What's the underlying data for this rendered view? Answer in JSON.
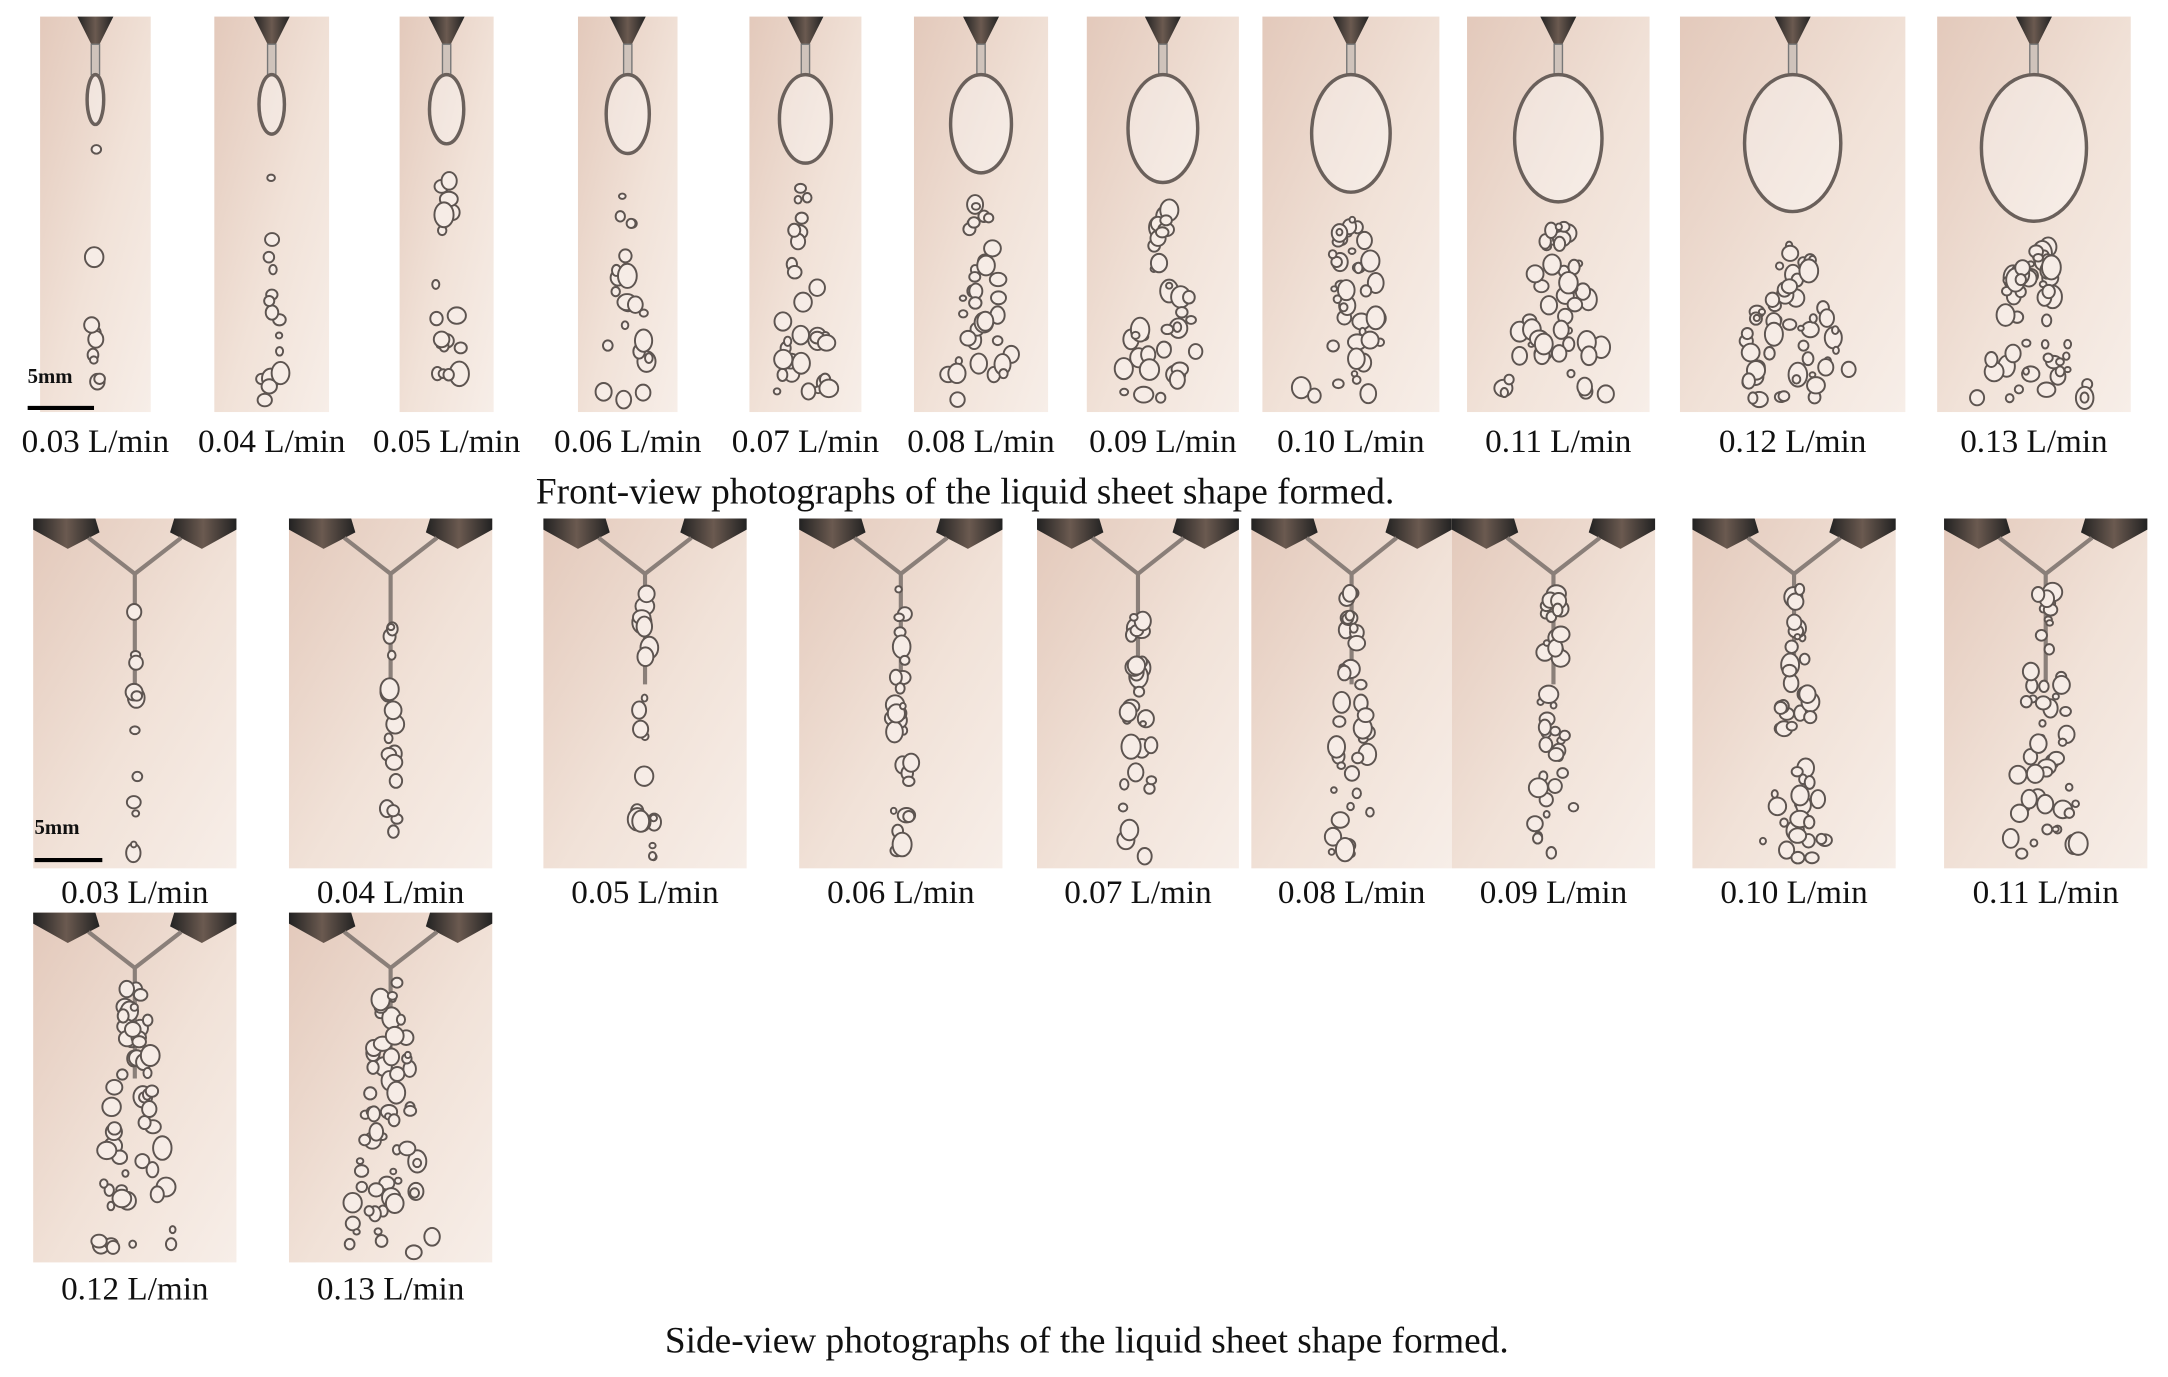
{
  "front_view": {
    "scale_bar": "5mm",
    "labels": [
      "0.03 L/min",
      "0.04 L/min",
      "0.05 L/min",
      "0.06 L/min",
      "0.07 L/min",
      "0.08 L/min",
      "0.09 L/min",
      "0.10 L/min",
      "0.11 L/min",
      "0.12 L/min",
      "0.13 L/min"
    ],
    "caption": "Front-view photographs of the liquid sheet shape formed."
  },
  "side_view": {
    "scale_bar": "5mm",
    "labels": [
      "0.03 L/min",
      "0.04 L/min",
      "0.05 L/min",
      "0.06 L/min",
      "0.07 L/min",
      "0.08 L/min",
      "0.09 L/min",
      "0.10 L/min",
      "0.11 L/min",
      "0.12 L/min",
      "0.13 L/min"
    ],
    "caption": "Side-view photographs of the liquid sheet shape formed."
  }
}
